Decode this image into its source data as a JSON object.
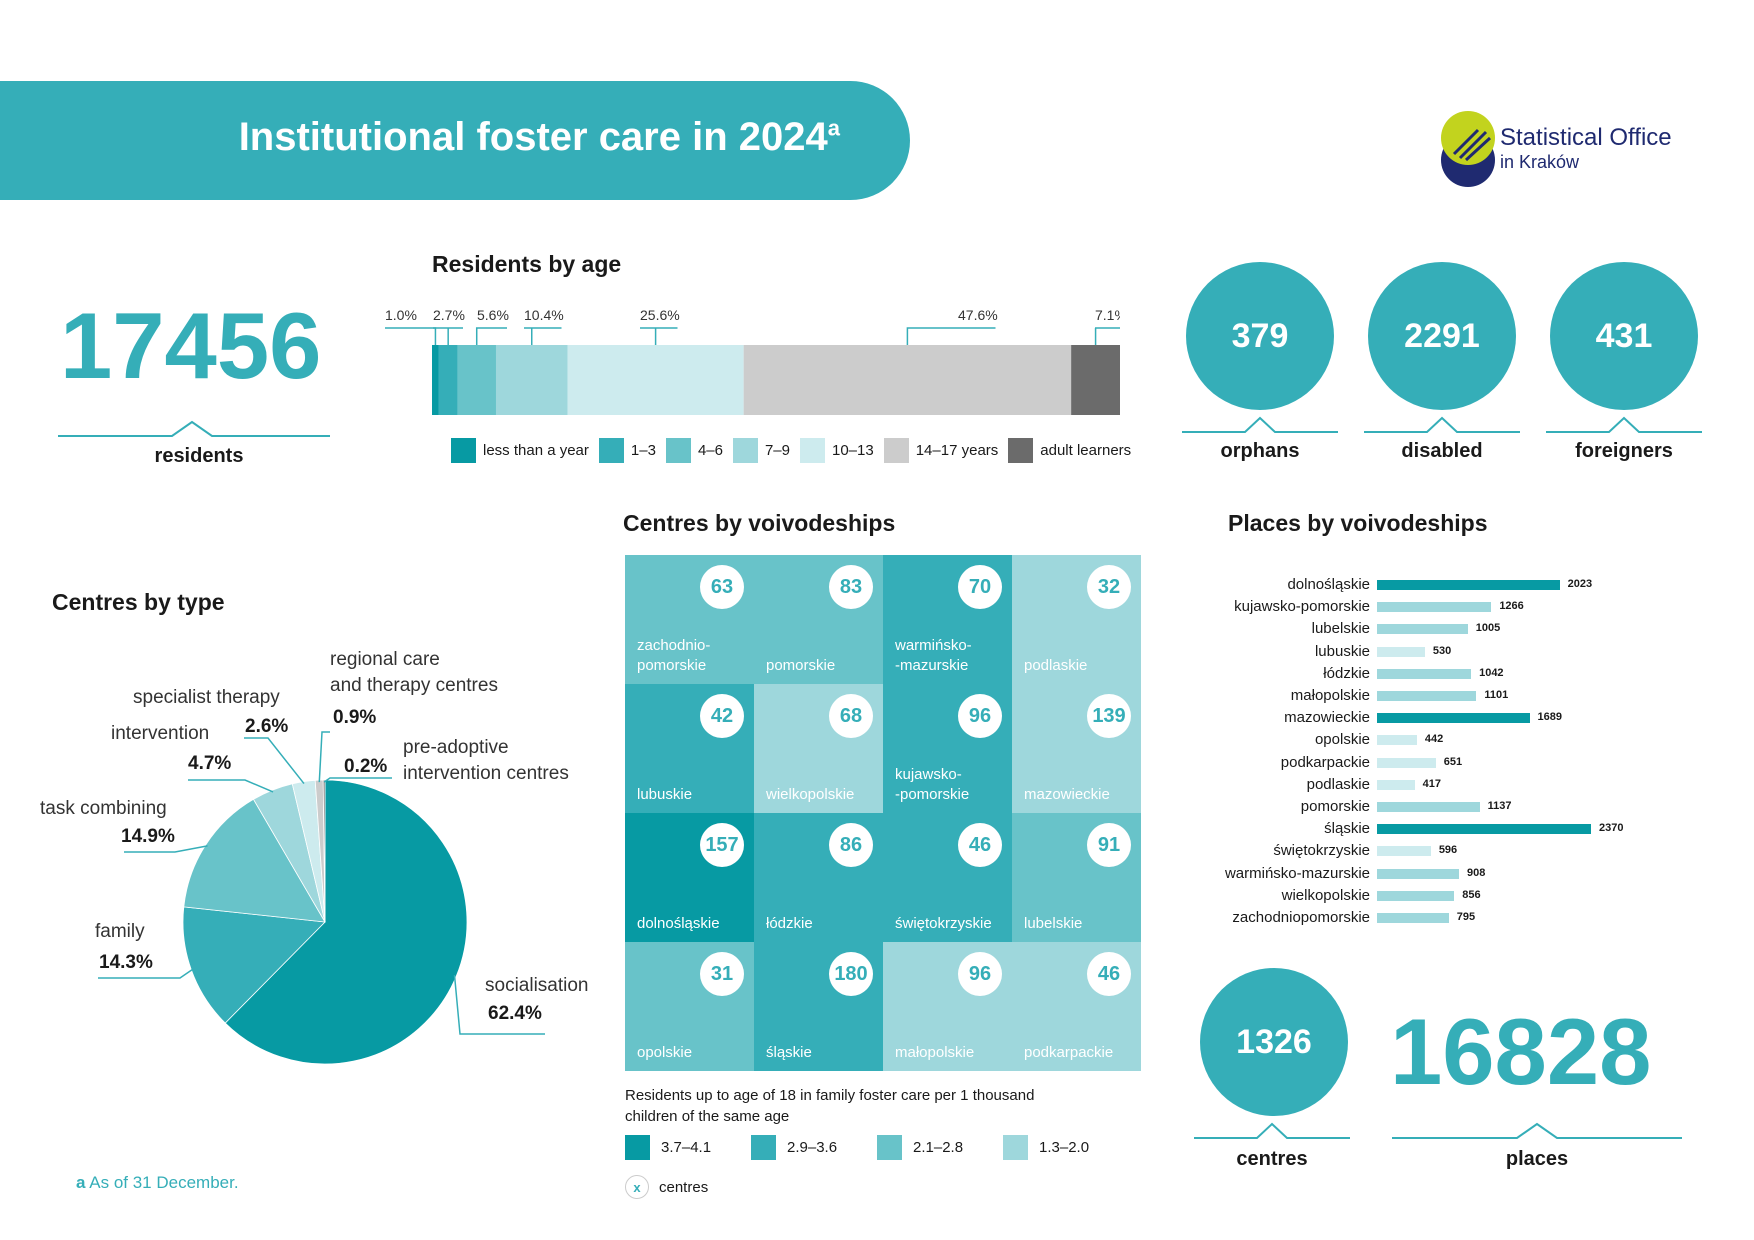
{
  "header": {
    "title": "Institutional foster care in 2024",
    "title_sup": "a"
  },
  "logo": {
    "line1": "Statistical Office",
    "line2": "in Kraków",
    "colors": {
      "top": "#c2d31e",
      "bottom": "#1f2a70"
    }
  },
  "residents": {
    "value": "17456",
    "label": "residents"
  },
  "stats": [
    {
      "value": "379",
      "label": "orphans"
    },
    {
      "value": "2291",
      "label": "disabled"
    },
    {
      "value": "431",
      "label": "foreigners"
    }
  ],
  "age_chart": {
    "title": "Residents by age",
    "chart_data": {
      "type": "bar",
      "orientation": "stacked-horizontal",
      "unit": "%",
      "series": [
        {
          "name": "less than a year",
          "value": 1.0,
          "label": "1.0%",
          "color": "#079aa3"
        },
        {
          "name": "1–3",
          "value": 2.7,
          "label": "2.7%",
          "color": "#35aeb8"
        },
        {
          "name": "4–6",
          "value": 5.6,
          "label": "5.6%",
          "color": "#68c3c9"
        },
        {
          "name": "7–9",
          "value": 10.4,
          "label": "10.4%",
          "color": "#9ed7dc"
        },
        {
          "name": "10–13",
          "value": 25.6,
          "label": "25.6%",
          "color": "#cdebee"
        },
        {
          "name": "14–17 years",
          "value": 47.6,
          "label": "47.6%",
          "color": "#cccccc"
        },
        {
          "name": "adult learners",
          "value": 7.1,
          "label": "7.1%",
          "color": "#6b6b6b"
        }
      ]
    }
  },
  "centres_type": {
    "title": "Centres by type",
    "chart_data": {
      "type": "pie",
      "unit": "%",
      "slices": [
        {
          "name": "socialisation",
          "value": 62.4,
          "label": "62.4%",
          "color": "#079aa3"
        },
        {
          "name": "family",
          "value": 14.3,
          "label": "14.3%",
          "color": "#35aeb8"
        },
        {
          "name": "task combining",
          "value": 14.9,
          "label": "14.9%",
          "color": "#68c3c9"
        },
        {
          "name": "intervention",
          "value": 4.7,
          "label": "4.7%",
          "color": "#9ed7dc"
        },
        {
          "name": "specialist therapy",
          "value": 2.6,
          "label": "2.6%",
          "color": "#cdebee"
        },
        {
          "name": "regional care and therapy centres",
          "value": 0.9,
          "label": "0.9%",
          "color": "#cccccc"
        },
        {
          "name": "pre-adoptive intervention centres",
          "value": 0.2,
          "label": "0.2%",
          "color": "#6b6b6b"
        }
      ]
    },
    "labels": {
      "regional_l1": "regional care",
      "regional_l2": "and therapy centres",
      "preadopt_l1": "pre-adoptive",
      "preadopt_l2": "intervention centres"
    }
  },
  "centres_voiv": {
    "title": "Centres by voivodeships",
    "chart_data": {
      "type": "heatmap",
      "cells": [
        {
          "name": "zachodnio-pomorskie",
          "l1": "zachodnio-",
          "l2": "pomorskie",
          "centres": 63,
          "class": 3,
          "color": "#68c3c9"
        },
        {
          "name": "pomorskie",
          "l1": "pomorskie",
          "l2": "",
          "centres": 83,
          "class": 3,
          "color": "#68c3c9"
        },
        {
          "name": "warmińsko-mazurskie",
          "l1": "warmińsko-",
          "l2": "-mazurskie",
          "centres": 70,
          "class": 2,
          "color": "#35aeb8"
        },
        {
          "name": "podlaskie",
          "l1": "podlaskie",
          "l2": "",
          "centres": 32,
          "class": 4,
          "color": "#9ed7dc"
        },
        {
          "name": "lubuskie",
          "l1": "lubuskie",
          "l2": "",
          "centres": 42,
          "class": 2,
          "color": "#35aeb8"
        },
        {
          "name": "wielkopolskie",
          "l1": "wielkopolskie",
          "l2": "",
          "centres": 68,
          "class": 4,
          "color": "#9ed7dc"
        },
        {
          "name": "kujawsko-pomorskie",
          "l1": "kujawsko-",
          "l2": "-pomorskie",
          "centres": 96,
          "class": 2,
          "color": "#35aeb8"
        },
        {
          "name": "mazowieckie",
          "l1": "mazowieckie",
          "l2": "",
          "centres": 139,
          "class": 4,
          "color": "#9ed7dc"
        },
        {
          "name": "dolnośląskie",
          "l1": "dolnośląskie",
          "l2": "",
          "centres": 157,
          "class": 1,
          "color": "#079aa3"
        },
        {
          "name": "łódzkie",
          "l1": "łódzkie",
          "l2": "",
          "centres": 86,
          "class": 2,
          "color": "#35aeb8"
        },
        {
          "name": "świętokrzyskie",
          "l1": "świętokrzyskie",
          "l2": "",
          "centres": 46,
          "class": 2,
          "color": "#35aeb8"
        },
        {
          "name": "lubelskie",
          "l1": "lubelskie",
          "l2": "",
          "centres": 91,
          "class": 3,
          "color": "#68c3c9"
        },
        {
          "name": "opolskie",
          "l1": "opolskie",
          "l2": "",
          "centres": 31,
          "class": 3,
          "color": "#68c3c9"
        },
        {
          "name": "śląskie",
          "l1": "śląskie",
          "l2": "",
          "centres": 180,
          "class": 2,
          "color": "#35aeb8"
        },
        {
          "name": "małopolskie",
          "l1": "małopolskie",
          "l2": "",
          "centres": 96,
          "class": 4,
          "color": "#9ed7dc"
        },
        {
          "name": "podkarpackie",
          "l1": "podkarpackie",
          "l2": "",
          "centres": 46,
          "class": 4,
          "color": "#9ed7dc"
        }
      ]
    },
    "legend_title_l1": "Residents up to age of 18 in family foster care per 1 thousand",
    "legend_title_l2": "children of the same age",
    "legend": [
      {
        "label": "3.7–4.1",
        "color": "#079aa3"
      },
      {
        "label": "2.9–3.6",
        "color": "#35aeb8"
      },
      {
        "label": "2.1–2.8",
        "color": "#68c3c9"
      },
      {
        "label": "1.3–2.0",
        "color": "#9ed7dc"
      }
    ],
    "legend_marker": {
      "symbol": "x",
      "label": "centres"
    }
  },
  "places_voiv": {
    "title": "Places by voivodeships",
    "chart_data": {
      "type": "bar",
      "orientation": "horizontal",
      "categories": [
        "dolnośląskie",
        "kujawsko-pomorskie",
        "lubelskie",
        "lubuskie",
        "łódzkie",
        "małopolskie",
        "mazowieckie",
        "opolskie",
        "podkarpackie",
        "podlaskie",
        "pomorskie",
        "śląskie",
        "świętokrzyskie",
        "warmińsko-mazurskie",
        "wielkopolskie",
        "zachodniopomorskie"
      ],
      "values": [
        2023,
        1266,
        1005,
        530,
        1042,
        1101,
        1689,
        442,
        651,
        417,
        1137,
        2370,
        596,
        908,
        856,
        795
      ],
      "colors": [
        "#079aa3",
        "#9ed7dc",
        "#9ed7dc",
        "#cdebee",
        "#9ed7dc",
        "#9ed7dc",
        "#079aa3",
        "#cdebee",
        "#cdebee",
        "#cdebee",
        "#9ed7dc",
        "#079aa3",
        "#cdebee",
        "#9ed7dc",
        "#9ed7dc",
        "#9ed7dc"
      ],
      "xlim": [
        0,
        2370
      ]
    }
  },
  "totals": {
    "centres": {
      "value": "1326",
      "label": "centres"
    },
    "places": {
      "value": "16828",
      "label": "places"
    }
  },
  "footnote": {
    "marker": "a",
    "text": " As of 31 December."
  }
}
